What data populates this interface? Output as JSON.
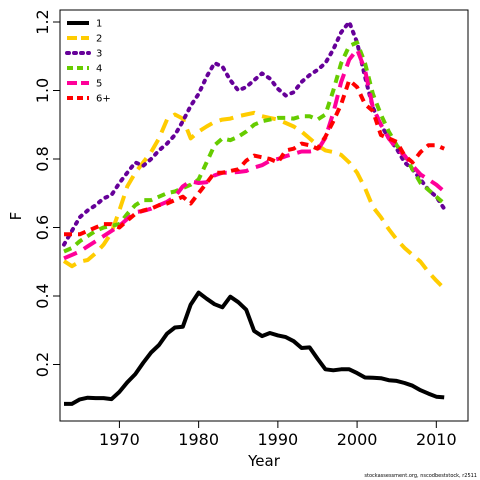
{
  "chart_data": {
    "type": "line",
    "xlabel": "Year",
    "ylabel": "F",
    "xlim": [
      1962.5,
      2014
    ],
    "ylim": [
      0.035,
      1.235
    ],
    "xticks": [
      "1970",
      "1980",
      "1990",
      "2000",
      "2010"
    ],
    "yticks": [
      "0.2",
      "0.4",
      "0.6",
      "0.8",
      "1.0",
      "1.2"
    ],
    "legend_position": "top-left",
    "grid": false,
    "footer": "stockassessment.org, nscodbeststock, r2511",
    "series": [
      {
        "name": "1",
        "color": "#000000",
        "dash": "solid",
        "points": [
          [
            1963,
            0.085
          ],
          [
            1964,
            0.085
          ],
          [
            1965,
            0.098
          ],
          [
            1966,
            0.103
          ],
          [
            1967,
            0.102
          ],
          [
            1968,
            0.102
          ],
          [
            1969,
            0.099
          ],
          [
            1970,
            0.12
          ],
          [
            1971,
            0.148
          ],
          [
            1972,
            0.172
          ],
          [
            1973,
            0.205
          ],
          [
            1974,
            0.235
          ],
          [
            1975,
            0.257
          ],
          [
            1976,
            0.29
          ],
          [
            1977,
            0.308
          ],
          [
            1978,
            0.31
          ],
          [
            1979,
            0.375
          ],
          [
            1980,
            0.41
          ],
          [
            1981,
            0.392
          ],
          [
            1982,
            0.376
          ],
          [
            1983,
            0.367
          ],
          [
            1984,
            0.398
          ],
          [
            1985,
            0.382
          ],
          [
            1986,
            0.36
          ],
          [
            1987,
            0.298
          ],
          [
            1988,
            0.283
          ],
          [
            1989,
            0.292
          ],
          [
            1990,
            0.285
          ],
          [
            1991,
            0.28
          ],
          [
            1992,
            0.268
          ],
          [
            1993,
            0.248
          ],
          [
            1994,
            0.25
          ],
          [
            1995,
            0.217
          ],
          [
            1996,
            0.186
          ],
          [
            1997,
            0.183
          ],
          [
            1998,
            0.186
          ],
          [
            1999,
            0.186
          ],
          [
            2000,
            0.175
          ],
          [
            2001,
            0.162
          ],
          [
            2002,
            0.161
          ],
          [
            2003,
            0.16
          ],
          [
            2004,
            0.154
          ],
          [
            2005,
            0.152
          ],
          [
            2006,
            0.146
          ],
          [
            2007,
            0.138
          ],
          [
            2008,
            0.125
          ],
          [
            2009,
            0.115
          ],
          [
            2010,
            0.106
          ],
          [
            2011,
            0.104
          ]
        ]
      },
      {
        "name": "2",
        "color": "#ffcc00",
        "dash": "longdash",
        "points": [
          [
            1963,
            0.502
          ],
          [
            1964,
            0.487
          ],
          [
            1965,
            0.5
          ],
          [
            1966,
            0.505
          ],
          [
            1967,
            0.525
          ],
          [
            1968,
            0.55
          ],
          [
            1969,
            0.585
          ],
          [
            1970,
            0.65
          ],
          [
            1971,
            0.72
          ],
          [
            1972,
            0.76
          ],
          [
            1973,
            0.79
          ],
          [
            1974,
            0.82
          ],
          [
            1975,
            0.86
          ],
          [
            1976,
            0.915
          ],
          [
            1977,
            0.93
          ],
          [
            1978,
            0.918
          ],
          [
            1979,
            0.86
          ],
          [
            1980,
            0.88
          ],
          [
            1981,
            0.895
          ],
          [
            1982,
            0.908
          ],
          [
            1983,
            0.915
          ],
          [
            1984,
            0.918
          ],
          [
            1985,
            0.925
          ],
          [
            1986,
            0.93
          ],
          [
            1987,
            0.935
          ],
          [
            1988,
            0.925
          ],
          [
            1989,
            0.92
          ],
          [
            1990,
            0.915
          ],
          [
            1991,
            0.905
          ],
          [
            1992,
            0.895
          ],
          [
            1993,
            0.88
          ],
          [
            1994,
            0.86
          ],
          [
            1995,
            0.84
          ],
          [
            1996,
            0.825
          ],
          [
            1997,
            0.82
          ],
          [
            1998,
            0.812
          ],
          [
            1999,
            0.79
          ],
          [
            2000,
            0.76
          ],
          [
            2001,
            0.715
          ],
          [
            2002,
            0.66
          ],
          [
            2003,
            0.63
          ],
          [
            2004,
            0.595
          ],
          [
            2005,
            0.565
          ],
          [
            2006,
            0.54
          ],
          [
            2007,
            0.52
          ],
          [
            2008,
            0.5
          ],
          [
            2009,
            0.47
          ],
          [
            2010,
            0.445
          ],
          [
            2011,
            0.422
          ]
        ]
      },
      {
        "name": "3",
        "color": "#660099",
        "dash": "dotted",
        "points": [
          [
            1963,
            0.55
          ],
          [
            1964,
            0.59
          ],
          [
            1965,
            0.63
          ],
          [
            1966,
            0.65
          ],
          [
            1967,
            0.665
          ],
          [
            1968,
            0.685
          ],
          [
            1969,
            0.695
          ],
          [
            1970,
            0.73
          ],
          [
            1971,
            0.76
          ],
          [
            1972,
            0.79
          ],
          [
            1973,
            0.78
          ],
          [
            1974,
            0.8
          ],
          [
            1975,
            0.825
          ],
          [
            1976,
            0.845
          ],
          [
            1977,
            0.87
          ],
          [
            1978,
            0.91
          ],
          [
            1979,
            0.955
          ],
          [
            1980,
            0.99
          ],
          [
            1981,
            1.04
          ],
          [
            1982,
            1.08
          ],
          [
            1983,
            1.07
          ],
          [
            1984,
            1.03
          ],
          [
            1985,
            1.0
          ],
          [
            1986,
            1.01
          ],
          [
            1987,
            1.03
          ],
          [
            1988,
            1.05
          ],
          [
            1989,
            1.035
          ],
          [
            1990,
            1.005
          ],
          [
            1991,
            0.985
          ],
          [
            1992,
            0.995
          ],
          [
            1993,
            1.025
          ],
          [
            1994,
            1.045
          ],
          [
            1995,
            1.06
          ],
          [
            1996,
            1.08
          ],
          [
            1997,
            1.12
          ],
          [
            1998,
            1.17
          ],
          [
            1999,
            1.2
          ],
          [
            2000,
            1.14
          ],
          [
            2001,
            1.04
          ],
          [
            2002,
            0.95
          ],
          [
            2003,
            0.9
          ],
          [
            2004,
            0.86
          ],
          [
            2005,
            0.83
          ],
          [
            2006,
            0.79
          ],
          [
            2007,
            0.77
          ],
          [
            2008,
            0.74
          ],
          [
            2009,
            0.71
          ],
          [
            2010,
            0.69
          ],
          [
            2011,
            0.655
          ]
        ]
      },
      {
        "name": "4",
        "color": "#66cc00",
        "dash": "dashed",
        "points": [
          [
            1963,
            0.53
          ],
          [
            1964,
            0.54
          ],
          [
            1965,
            0.56
          ],
          [
            1966,
            0.575
          ],
          [
            1967,
            0.59
          ],
          [
            1968,
            0.6
          ],
          [
            1969,
            0.605
          ],
          [
            1970,
            0.61
          ],
          [
            1971,
            0.64
          ],
          [
            1972,
            0.665
          ],
          [
            1973,
            0.68
          ],
          [
            1974,
            0.68
          ],
          [
            1975,
            0.69
          ],
          [
            1976,
            0.7
          ],
          [
            1977,
            0.705
          ],
          [
            1978,
            0.715
          ],
          [
            1979,
            0.725
          ],
          [
            1980,
            0.74
          ],
          [
            1981,
            0.79
          ],
          [
            1982,
            0.84
          ],
          [
            1983,
            0.86
          ],
          [
            1984,
            0.855
          ],
          [
            1985,
            0.865
          ],
          [
            1986,
            0.88
          ],
          [
            1987,
            0.9
          ],
          [
            1988,
            0.91
          ],
          [
            1989,
            0.915
          ],
          [
            1990,
            0.92
          ],
          [
            1991,
            0.92
          ],
          [
            1992,
            0.918
          ],
          [
            1993,
            0.925
          ],
          [
            1994,
            0.925
          ],
          [
            1995,
            0.915
          ],
          [
            1996,
            0.93
          ],
          [
            1997,
            1.0
          ],
          [
            1998,
            1.08
          ],
          [
            1999,
            1.13
          ],
          [
            2000,
            1.14
          ],
          [
            2001,
            1.08
          ],
          [
            2002,
            0.99
          ],
          [
            2003,
            0.93
          ],
          [
            2004,
            0.88
          ],
          [
            2005,
            0.84
          ],
          [
            2006,
            0.81
          ],
          [
            2007,
            0.77
          ],
          [
            2008,
            0.73
          ],
          [
            2009,
            0.71
          ],
          [
            2010,
            0.69
          ],
          [
            2011,
            0.67
          ]
        ]
      },
      {
        "name": "5",
        "color": "#ff0099",
        "dash": "longdash",
        "points": [
          [
            1963,
            0.51
          ],
          [
            1964,
            0.52
          ],
          [
            1965,
            0.53
          ],
          [
            1966,
            0.545
          ],
          [
            1967,
            0.56
          ],
          [
            1968,
            0.575
          ],
          [
            1969,
            0.59
          ],
          [
            1970,
            0.605
          ],
          [
            1971,
            0.625
          ],
          [
            1972,
            0.645
          ],
          [
            1973,
            0.648
          ],
          [
            1974,
            0.655
          ],
          [
            1975,
            0.665
          ],
          [
            1976,
            0.675
          ],
          [
            1977,
            0.69
          ],
          [
            1978,
            0.72
          ],
          [
            1979,
            0.735
          ],
          [
            1980,
            0.73
          ],
          [
            1981,
            0.732
          ],
          [
            1982,
            0.752
          ],
          [
            1983,
            0.76
          ],
          [
            1984,
            0.76
          ],
          [
            1985,
            0.762
          ],
          [
            1986,
            0.765
          ],
          [
            1987,
            0.775
          ],
          [
            1988,
            0.782
          ],
          [
            1989,
            0.795
          ],
          [
            1990,
            0.8
          ],
          [
            1991,
            0.808
          ],
          [
            1992,
            0.815
          ],
          [
            1993,
            0.822
          ],
          [
            1994,
            0.822
          ],
          [
            1995,
            0.825
          ],
          [
            1996,
            0.862
          ],
          [
            1997,
            0.935
          ],
          [
            1998,
            1.025
          ],
          [
            1999,
            1.09
          ],
          [
            2000,
            1.12
          ],
          [
            2001,
            1.06
          ],
          [
            2002,
            0.95
          ],
          [
            2003,
            0.9
          ],
          [
            2004,
            0.86
          ],
          [
            2005,
            0.83
          ],
          [
            2006,
            0.81
          ],
          [
            2007,
            0.78
          ],
          [
            2008,
            0.755
          ],
          [
            2009,
            0.74
          ],
          [
            2010,
            0.725
          ],
          [
            2011,
            0.705
          ]
        ]
      },
      {
        "name": "6+",
        "color": "#ff0000",
        "dash": "dashed",
        "points": [
          [
            1963,
            0.58
          ],
          [
            1964,
            0.58
          ],
          [
            1965,
            0.58
          ],
          [
            1966,
            0.59
          ],
          [
            1967,
            0.6
          ],
          [
            1968,
            0.61
          ],
          [
            1969,
            0.61
          ],
          [
            1970,
            0.6
          ],
          [
            1971,
            0.62
          ],
          [
            1972,
            0.64
          ],
          [
            1973,
            0.65
          ],
          [
            1974,
            0.655
          ],
          [
            1975,
            0.665
          ],
          [
            1976,
            0.67
          ],
          [
            1977,
            0.68
          ],
          [
            1978,
            0.69
          ],
          [
            1979,
            0.67
          ],
          [
            1980,
            0.7
          ],
          [
            1981,
            0.73
          ],
          [
            1982,
            0.76
          ],
          [
            1983,
            0.76
          ],
          [
            1984,
            0.765
          ],
          [
            1985,
            0.77
          ],
          [
            1986,
            0.795
          ],
          [
            1987,
            0.81
          ],
          [
            1988,
            0.805
          ],
          [
            1989,
            0.8
          ],
          [
            1990,
            0.79
          ],
          [
            1991,
            0.825
          ],
          [
            1992,
            0.83
          ],
          [
            1993,
            0.845
          ],
          [
            1994,
            0.84
          ],
          [
            1995,
            0.83
          ],
          [
            1996,
            0.865
          ],
          [
            1997,
            0.91
          ],
          [
            1998,
            0.96
          ],
          [
            1999,
            1.03
          ],
          [
            2000,
            1.01
          ],
          [
            2001,
            0.96
          ],
          [
            2002,
            0.94
          ],
          [
            2003,
            0.87
          ],
          [
            2004,
            0.86
          ],
          [
            2005,
            0.85
          ],
          [
            2006,
            0.81
          ],
          [
            2007,
            0.79
          ],
          [
            2008,
            0.82
          ],
          [
            2009,
            0.84
          ],
          [
            2010,
            0.84
          ],
          [
            2011,
            0.83
          ]
        ]
      }
    ]
  }
}
